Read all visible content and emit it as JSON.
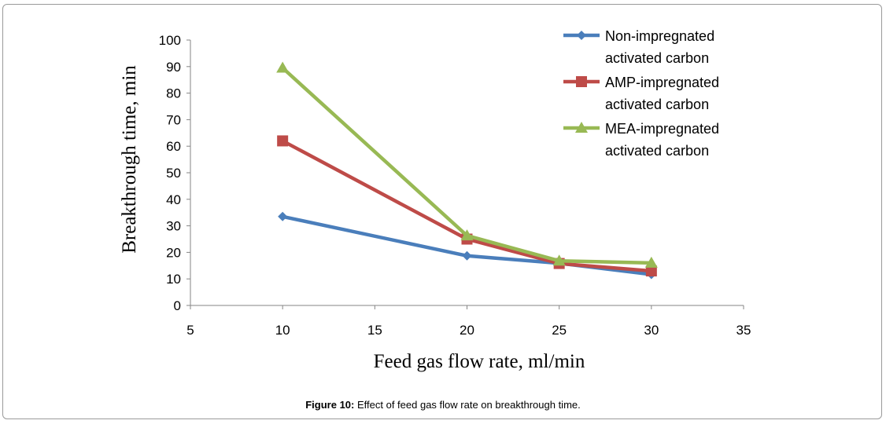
{
  "chart_data": {
    "type": "line",
    "x": [
      10,
      20,
      25,
      30
    ],
    "series": [
      {
        "name": "Non-impregnated activated carbon",
        "legend_lines": [
          "Non-impregnated",
          "activated carbon"
        ],
        "values": [
          33.5,
          18.7,
          15.9,
          11.7
        ],
        "color": "#4a7ebb",
        "marker": "diamond"
      },
      {
        "name": "AMP-impregnated activated carbon",
        "legend_lines": [
          "AMP-impregnated",
          "activated carbon"
        ],
        "values": [
          62,
          25,
          15.8,
          13
        ],
        "color": "#be4b48",
        "marker": "square"
      },
      {
        "name": "MEA-impregnated activated carbon",
        "legend_lines": [
          "MEA-impregnated",
          "activated carbon"
        ],
        "values": [
          89.5,
          26.3,
          16.8,
          16
        ],
        "color": "#98b954",
        "marker": "triangle"
      }
    ],
    "xlabel": "Feed gas flow rate, ml/min",
    "ylabel": "Breakthrough time, min",
    "xlim": [
      5,
      35
    ],
    "ylim": [
      0,
      100
    ],
    "xticks": [
      5,
      10,
      15,
      20,
      25,
      30,
      35
    ],
    "yticks": [
      0,
      10,
      20,
      30,
      40,
      50,
      60,
      70,
      80,
      90,
      100
    ],
    "grid": false,
    "legend_position": "top-right"
  },
  "caption": {
    "label": "Figure 10:",
    "text": "Effect of feed gas flow rate on breakthrough time."
  }
}
